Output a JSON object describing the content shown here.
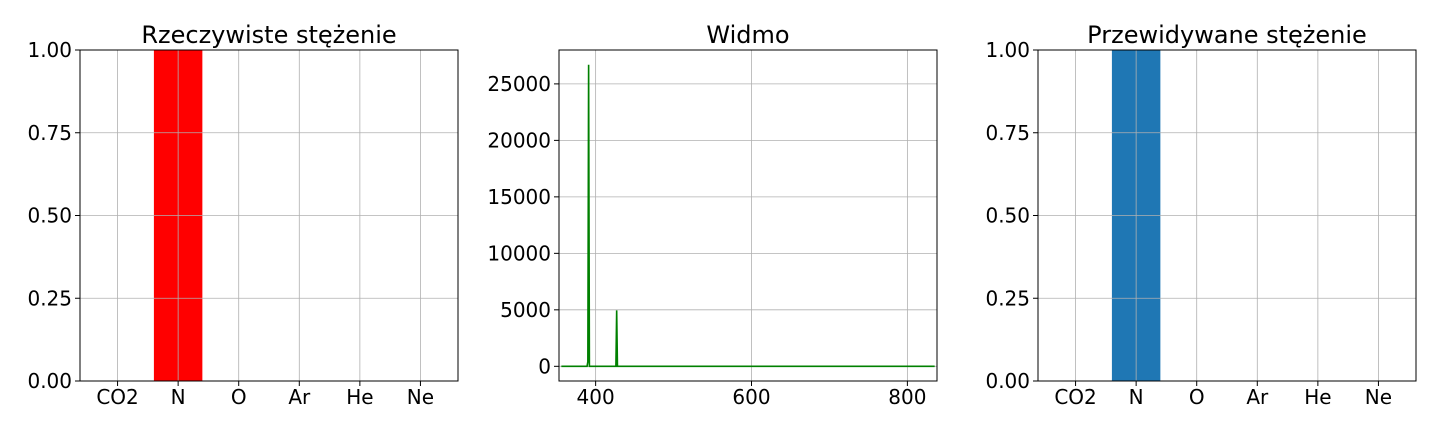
{
  "chart_data": [
    {
      "type": "bar",
      "title": "Rzeczywiste stężenie",
      "categories": [
        "CO2",
        "N",
        "O",
        "Ar",
        "He",
        "Ne"
      ],
      "values": [
        0,
        1,
        0,
        0,
        0,
        0
      ],
      "ylim": [
        0,
        1
      ],
      "yticks": [
        0,
        0.25,
        0.5,
        0.75,
        1
      ],
      "ytick_labels": [
        "0.00",
        "0.25",
        "0.50",
        "0.75",
        "1.00"
      ],
      "color": "#ff0000",
      "grid": true
    },
    {
      "type": "line",
      "title": "Widmo",
      "xlim": [
        353,
        838
      ],
      "ylim": [
        -1300,
        28000
      ],
      "xticks": [
        400,
        600,
        800
      ],
      "xtick_labels": [
        "400",
        "600",
        "800"
      ],
      "yticks": [
        0,
        5000,
        10000,
        15000,
        20000,
        25000
      ],
      "ytick_labels": [
        "0",
        "5000",
        "10000",
        "15000",
        "20000",
        "25000"
      ],
      "color": "#008000",
      "grid": true,
      "series": [
        {
          "x": [
            356,
            389,
            390,
            391,
            392,
            426,
            427,
            428,
            429,
            835
          ],
          "y": [
            0,
            0,
            400,
            26700,
            0,
            0,
            4950,
            0,
            0,
            0
          ]
        }
      ]
    },
    {
      "type": "bar",
      "title": "Przewidywane stężenie",
      "categories": [
        "CO2",
        "N",
        "O",
        "Ar",
        "He",
        "Ne"
      ],
      "values": [
        0,
        1,
        0,
        0,
        0,
        0
      ],
      "ylim": [
        0,
        1
      ],
      "yticks": [
        0,
        0.25,
        0.5,
        0.75,
        1
      ],
      "ytick_labels": [
        "0.00",
        "0.25",
        "0.50",
        "0.75",
        "1.00"
      ],
      "color": "#1f77b4",
      "grid": true
    }
  ]
}
